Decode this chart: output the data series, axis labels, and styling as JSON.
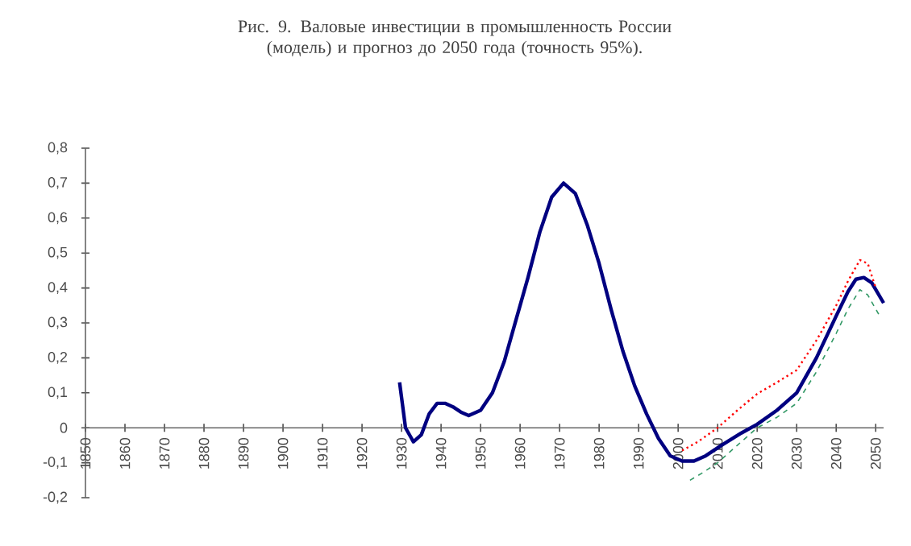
{
  "chart_data": {
    "type": "line",
    "title": "Рис. 9. Валовые инвестиции в промышленность России (модель) и прогноз до 2050 года (точность 95%).",
    "xlim": [
      1850,
      2052
    ],
    "ylim": [
      -0.2,
      0.8
    ],
    "xticks": [
      1850,
      1860,
      1870,
      1880,
      1890,
      1900,
      1910,
      1920,
      1930,
      1940,
      1950,
      1960,
      1970,
      1980,
      1990,
      2000,
      2010,
      2020,
      2030,
      2040,
      2050
    ],
    "yticks": [
      {
        "value": -0.2,
        "label": "-0,2"
      },
      {
        "value": -0.1,
        "label": "-0,1"
      },
      0,
      {
        "value": 0.1,
        "label": "0,1"
      },
      {
        "value": 0.2,
        "label": "0,2"
      },
      {
        "value": 0.3,
        "label": "0,3"
      },
      {
        "value": 0.4,
        "label": "0,4"
      },
      {
        "value": 0.5,
        "label": "0,5"
      },
      {
        "value": 0.6,
        "label": "0,6"
      },
      {
        "value": 0.7,
        "label": "0,7"
      },
      {
        "value": 0.8,
        "label": "0,8"
      }
    ],
    "grid": false,
    "marker": "none",
    "series": [
      {
        "color": "#000080",
        "line_style": "solid",
        "x": [
          1929.5,
          1931,
          1933,
          1935,
          1937,
          1939,
          1941,
          1943,
          1945,
          1947,
          1950,
          1953,
          1956,
          1959,
          1962,
          1965,
          1968,
          1971,
          1974,
          1977,
          1980,
          1983,
          1986,
          1989,
          1992,
          1995,
          1998,
          2001,
          2004,
          2007,
          2011,
          2016,
          2020,
          2025,
          2030,
          2035,
          2040,
          2043,
          2045,
          2047,
          2049,
          2052
        ],
        "values": [
          0.13,
          0.0,
          -0.04,
          -0.02,
          0.04,
          0.07,
          0.07,
          0.06,
          0.045,
          0.035,
          0.05,
          0.1,
          0.19,
          0.31,
          0.43,
          0.56,
          0.66,
          0.7,
          0.67,
          0.58,
          0.47,
          0.34,
          0.22,
          0.12,
          0.04,
          -0.03,
          -0.08,
          -0.095,
          -0.095,
          -0.08,
          -0.05,
          -0.015,
          0.01,
          0.05,
          0.1,
          0.2,
          0.32,
          0.39,
          0.425,
          0.43,
          0.415,
          0.357
        ]
      },
      {
        "color": "#ff0000",
        "line_style": "dotted",
        "x": [
          2001,
          2005,
          2010,
          2015,
          2020,
          2025,
          2030,
          2035,
          2040,
          2043,
          2046,
          2048,
          2050
        ],
        "values": [
          -0.065,
          -0.04,
          0.0,
          0.05,
          0.097,
          0.13,
          0.165,
          0.25,
          0.35,
          0.42,
          0.48,
          0.47,
          0.4
        ]
      },
      {
        "color": "#339966",
        "line_style": "dashed",
        "x": [
          2003,
          2006,
          2010,
          2015,
          2020,
          2025,
          2030,
          2035,
          2040,
          2043,
          2046,
          2048,
          2051
        ],
        "values": [
          -0.15,
          -0.13,
          -0.1,
          -0.05,
          0.0,
          0.03,
          0.07,
          0.16,
          0.27,
          0.34,
          0.395,
          0.38,
          0.32
        ]
      }
    ]
  }
}
